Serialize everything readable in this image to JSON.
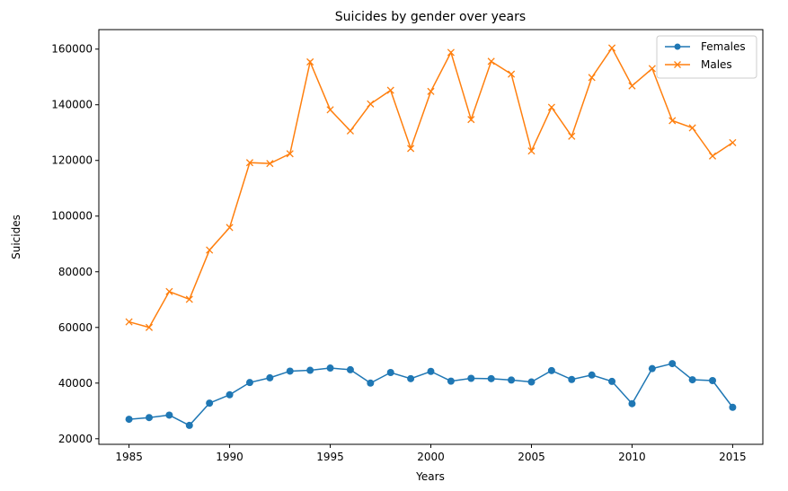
{
  "chart_data": {
    "type": "line",
    "title": "Suicides by gender over years",
    "xlabel": "Years",
    "ylabel": "Suicides",
    "xlim": [
      1983.5,
      2016.5
    ],
    "ylim": [
      18000,
      167000
    ],
    "xticks": [
      1985,
      1990,
      1995,
      2000,
      2005,
      2010,
      2015
    ],
    "yticks": [
      20000,
      40000,
      60000,
      80000,
      100000,
      120000,
      140000,
      160000
    ],
    "grid": false,
    "legend_position": "top-right",
    "x": [
      1985,
      1986,
      1987,
      1988,
      1989,
      1990,
      1991,
      1992,
      1993,
      1994,
      1995,
      1996,
      1997,
      1998,
      1999,
      2000,
      2001,
      2002,
      2003,
      2004,
      2005,
      2006,
      2007,
      2008,
      2009,
      2010,
      2011,
      2012,
      2013,
      2014,
      2015
    ],
    "series": [
      {
        "name": "Females",
        "color": "#1f77b4",
        "marker": "circle",
        "values": [
          27000,
          27600,
          28500,
          24800,
          32800,
          35800,
          40200,
          41900,
          44300,
          44600,
          45400,
          44800,
          40000,
          43800,
          41600,
          44200,
          40700,
          41700,
          41600,
          41100,
          40400,
          44500,
          41300,
          42900,
          40600,
          32600,
          45200,
          47000,
          41200,
          40900,
          31300
        ]
      },
      {
        "name": "Males",
        "color": "#ff7f0e",
        "marker": "x",
        "values": [
          62000,
          60000,
          72900,
          70100,
          87800,
          95900,
          119200,
          118900,
          122400,
          155400,
          138200,
          130600,
          140300,
          145200,
          124300,
          144800,
          158800,
          134700,
          155600,
          151000,
          123400,
          139100,
          128700,
          149800,
          160400,
          146800,
          153000,
          134300,
          131700,
          121600,
          126400
        ]
      }
    ]
  }
}
